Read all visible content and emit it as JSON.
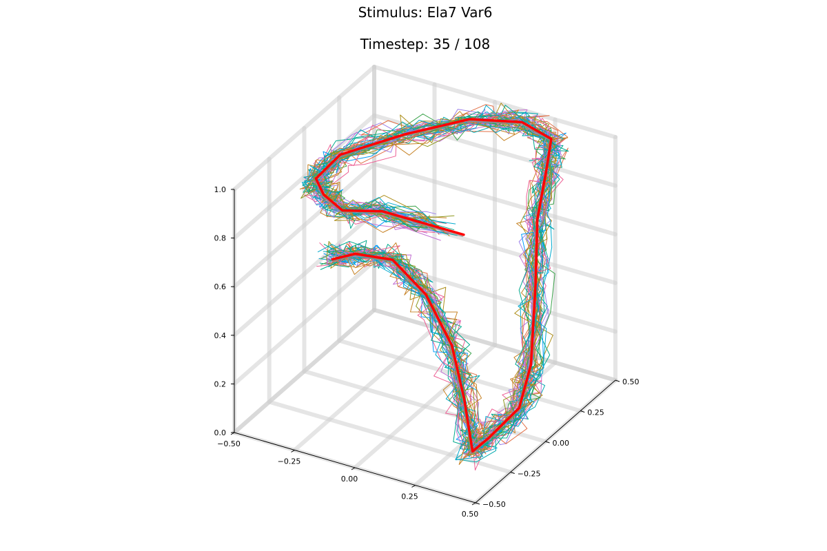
{
  "chart_data": {
    "type": "line",
    "title": "Stimulus: Ela7 Var6",
    "subtitle": "Timestep: 35 / 108",
    "grid": true,
    "legend": "none",
    "xlim": [
      -0.5,
      0.5
    ],
    "ylim": [
      -0.5,
      0.5
    ],
    "zlim": [
      0.0,
      1.0
    ],
    "x_ticks": [
      "−0.50",
      "−0.25",
      "0.00",
      "0.25",
      "0.50"
    ],
    "y_ticks": [
      "−0.50",
      "−0.25",
      "0.00",
      "0.25",
      "0.50"
    ],
    "z_ticks": [
      "0.0",
      "0.2",
      "0.4",
      "0.6",
      "0.8",
      "1.0"
    ],
    "mean_trajectory": {
      "color": "#ff0000",
      "points": [
        [
          -0.43,
          0.08,
          0.44
        ],
        [
          -0.37,
          0.14,
          0.45
        ],
        [
          -0.25,
          0.2,
          0.43
        ],
        [
          -0.1,
          0.18,
          0.34
        ],
        [
          0.1,
          0.02,
          0.27
        ],
        [
          0.25,
          -0.15,
          0.18
        ],
        [
          0.36,
          -0.28,
          0.06
        ],
        [
          0.38,
          -0.2,
          0.08
        ],
        [
          0.42,
          -0.05,
          0.14
        ],
        [
          0.44,
          0.0,
          0.3
        ],
        [
          0.43,
          0.05,
          0.6
        ],
        [
          0.42,
          0.08,
          0.85
        ],
        [
          0.4,
          0.18,
          1.0
        ],
        [
          0.35,
          0.3,
          1.05
        ],
        [
          0.2,
          0.35,
          1.05
        ],
        [
          0.0,
          0.32,
          1.02
        ],
        [
          -0.2,
          0.2,
          0.96
        ],
        [
          -0.38,
          0.05,
          0.9
        ],
        [
          -0.44,
          -0.02,
          0.82
        ],
        [
          -0.42,
          0.0,
          0.75
        ],
        [
          -0.4,
          0.1,
          0.64
        ],
        [
          -0.35,
          0.3,
          0.55
        ],
        [
          -0.1,
          0.45,
          0.45
        ]
      ]
    },
    "series_colors": [
      "#009af9",
      "#e26f46",
      "#3da44d",
      "#c271d2",
      "#ac8d18",
      "#00a9ad",
      "#ed5e93",
      "#c68225",
      "#00a98d",
      "#8e971d",
      "#00a9ce",
      "#9b7fe9"
    ],
    "n_trajectories": 48
  }
}
